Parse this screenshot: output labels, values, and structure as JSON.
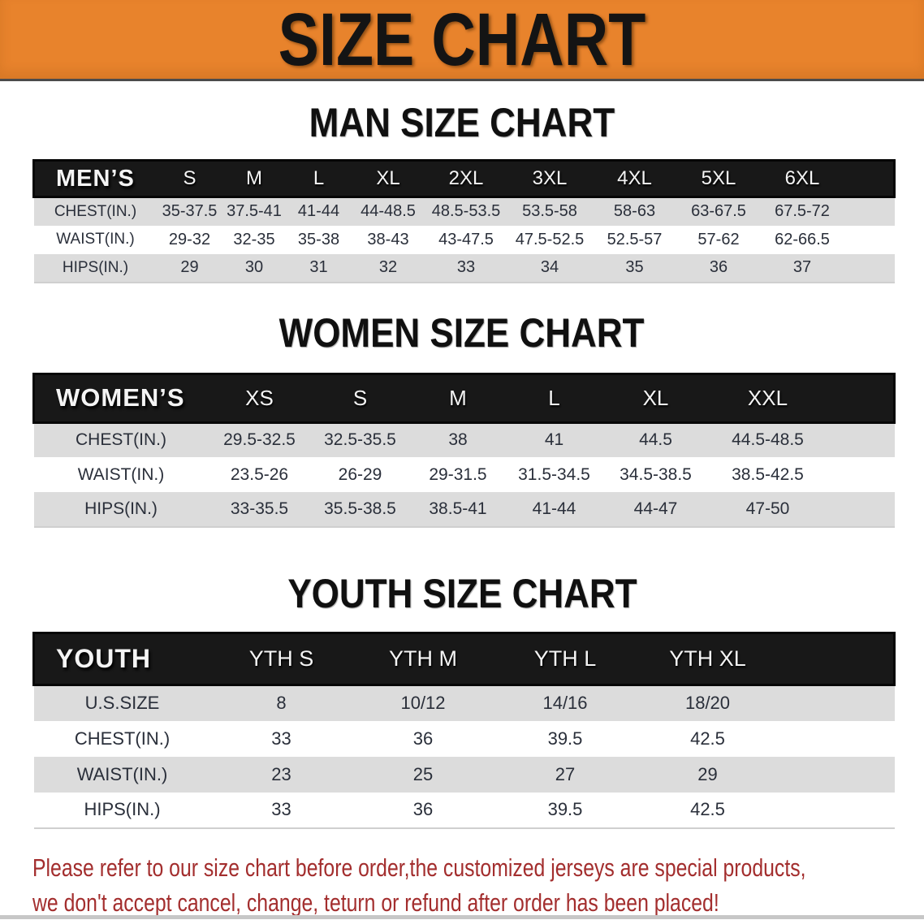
{
  "banner": {
    "title": "SIZE CHART"
  },
  "colors": {
    "banner_bg": "#e8832c",
    "header_bar_bg": "#181818",
    "row_shade": "#dcdcdc",
    "disclaimer_red": "#a32e2e",
    "value_text": "#2a2f3a"
  },
  "men": {
    "heading": "MAN SIZE CHART",
    "corner_label": "MEN’S",
    "sizes": [
      "S",
      "M",
      "L",
      "XL",
      "2XL",
      "3XL",
      "4XL",
      "5XL",
      "6XL"
    ],
    "rows": [
      {
        "label": "CHEST(IN.)",
        "values": [
          "35-37.5",
          "37.5-41",
          "41-44",
          "44-48.5",
          "48.5-53.5",
          "53.5-58",
          "58-63",
          "63-67.5",
          "67.5-72"
        ]
      },
      {
        "label": "WAIST(IN.)",
        "values": [
          "29-32",
          "32-35",
          "35-38",
          "38-43",
          "43-47.5",
          "47.5-52.5",
          "52.5-57",
          "57-62",
          "62-66.5"
        ]
      },
      {
        "label": "HIPS(IN.)",
        "values": [
          "29",
          "30",
          "31",
          "32",
          "33",
          "34",
          "35",
          "36",
          "37"
        ]
      }
    ]
  },
  "women": {
    "heading": "WOMEN SIZE CHART",
    "corner_label": "WOMEN’S",
    "sizes": [
      "XS",
      "S",
      "M",
      "L",
      "XL",
      "XXL"
    ],
    "rows": [
      {
        "label": "CHEST(IN.)",
        "values": [
          "29.5-32.5",
          "32.5-35.5",
          "38",
          "41",
          "44.5",
          "44.5-48.5"
        ]
      },
      {
        "label": "WAIST(IN.)",
        "values": [
          "23.5-26",
          "26-29",
          "29-31.5",
          "31.5-34.5",
          "34.5-38.5",
          "38.5-42.5"
        ]
      },
      {
        "label": "HIPS(IN.)",
        "values": [
          "33-35.5",
          "35.5-38.5",
          "38.5-41",
          "41-44",
          "44-47",
          "47-50"
        ]
      }
    ]
  },
  "youth": {
    "heading": "YOUTH SIZE CHART",
    "corner_label": "YOUTH",
    "sizes": [
      "YTH S",
      "YTH M",
      "YTH L",
      "YTH XL"
    ],
    "rows": [
      {
        "label": "U.S.SIZE",
        "values": [
          "8",
          "10/12",
          "14/16",
          "18/20"
        ]
      },
      {
        "label": "CHEST(IN.)",
        "values": [
          "33",
          "36",
          "39.5",
          "42.5"
        ]
      },
      {
        "label": "WAIST(IN.)",
        "values": [
          "23",
          "25",
          "27",
          "29"
        ]
      },
      {
        "label": "HIPS(IN.)",
        "values": [
          "33",
          "36",
          "39.5",
          "42.5"
        ]
      }
    ]
  },
  "disclaimer": {
    "line1": "Please refer to our size chart before order,the customized jerseys are special products,",
    "line2": "we don't accept cancel, change, teturn or refund after order has been placed!"
  }
}
